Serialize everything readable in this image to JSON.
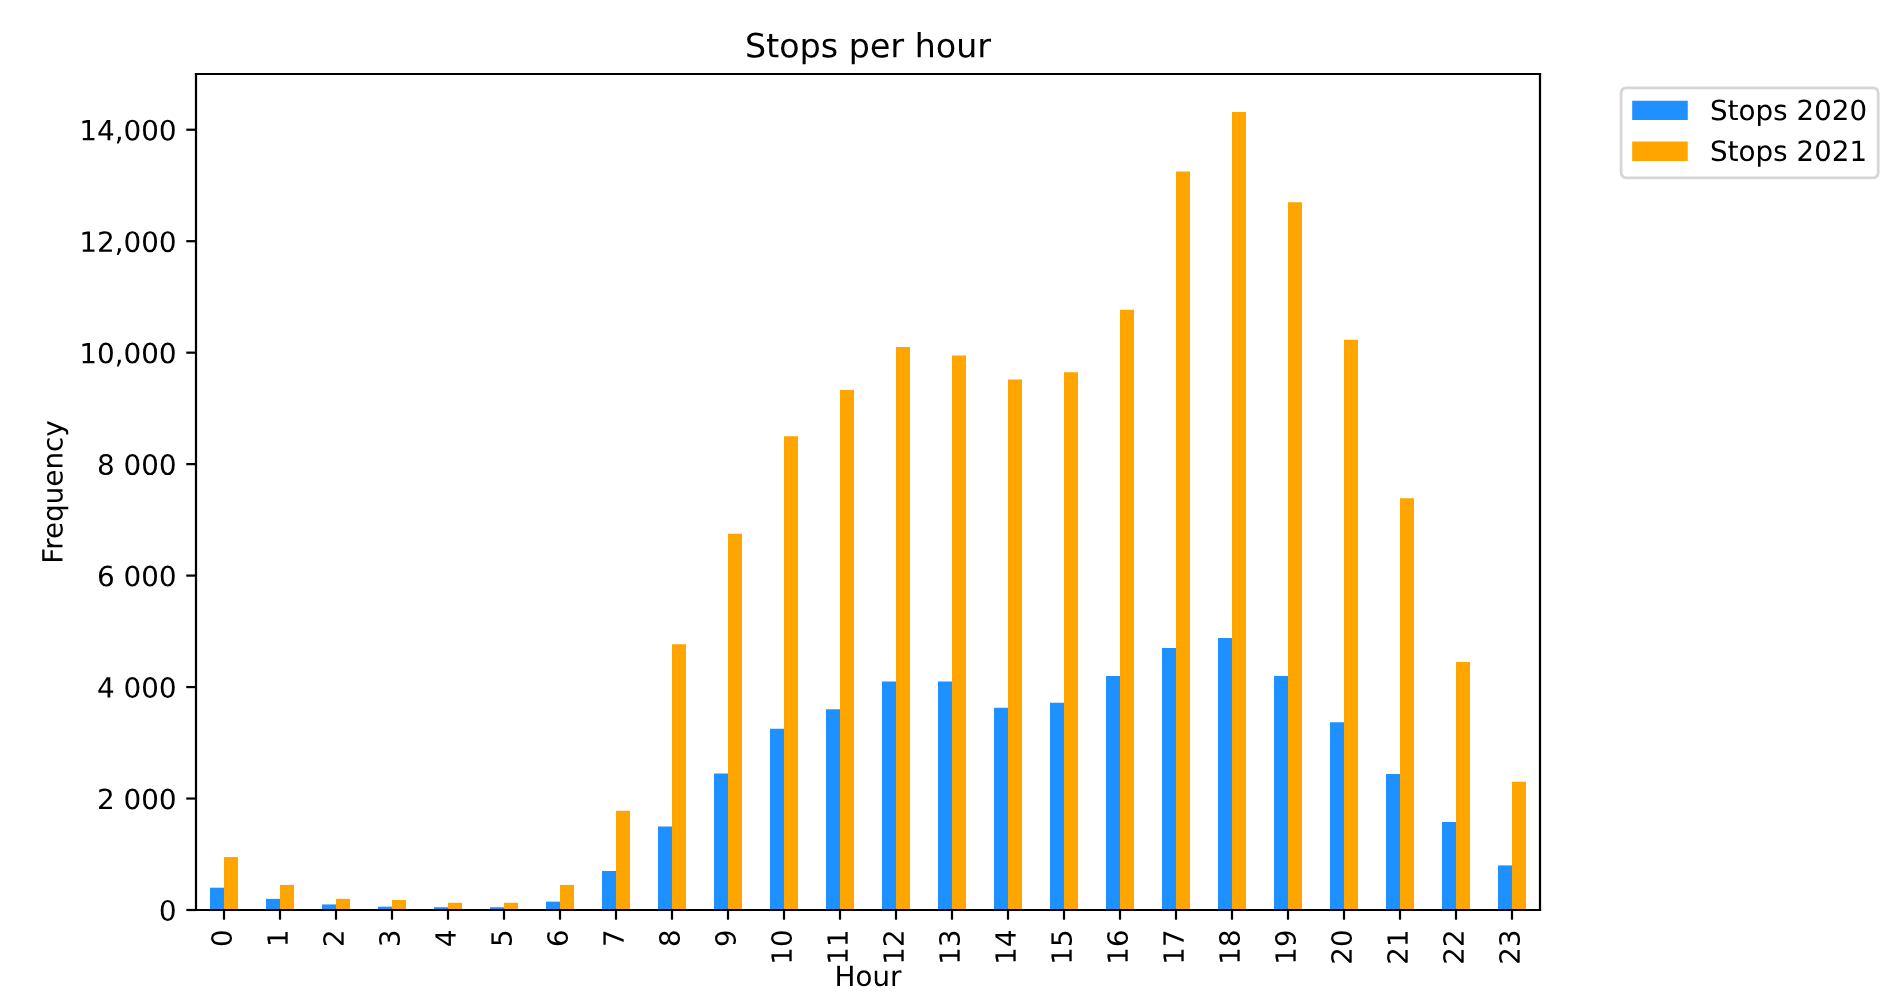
{
  "chart_data": {
    "type": "bar",
    "title": "Stops per hour",
    "xlabel": "Hour",
    "ylabel": "Frequency",
    "categories": [
      "0",
      "1",
      "2",
      "3",
      "4",
      "5",
      "6",
      "7",
      "8",
      "9",
      "10",
      "11",
      "12",
      "13",
      "14",
      "15",
      "16",
      "17",
      "18",
      "19",
      "20",
      "21",
      "22",
      "23"
    ],
    "series": [
      {
        "name": "Stops 2020",
        "color": "#1e90ff",
        "values": [
          400,
          200,
          100,
          60,
          50,
          50,
          150,
          700,
          1500,
          2450,
          3250,
          3600,
          4100,
          4100,
          3630,
          3720,
          4200,
          4700,
          4880,
          4200,
          3370,
          2440,
          1580,
          800
        ]
      },
      {
        "name": "Stops 2021",
        "color": "#ffa500",
        "values": [
          950,
          450,
          200,
          180,
          130,
          130,
          450,
          1780,
          4770,
          6750,
          8500,
          9330,
          10100,
          9950,
          9520,
          9650,
          10770,
          13250,
          14320,
          12700,
          10230,
          7390,
          4450,
          2300
        ]
      }
    ],
    "ylim": [
      0,
      15000
    ],
    "yticks": [
      0,
      {
        "value": 2000,
        "label": "2 000"
      },
      {
        "value": 4000,
        "label": "4 000"
      },
      {
        "value": 6000,
        "label": "6 000"
      },
      {
        "value": 8000,
        "label": "8 000"
      },
      {
        "value": 10000,
        "label": "10,000"
      },
      {
        "value": 12000,
        "label": "12,000"
      },
      {
        "value": 14000,
        "label": "14,000"
      }
    ],
    "legend": "top right",
    "grid": false
  }
}
